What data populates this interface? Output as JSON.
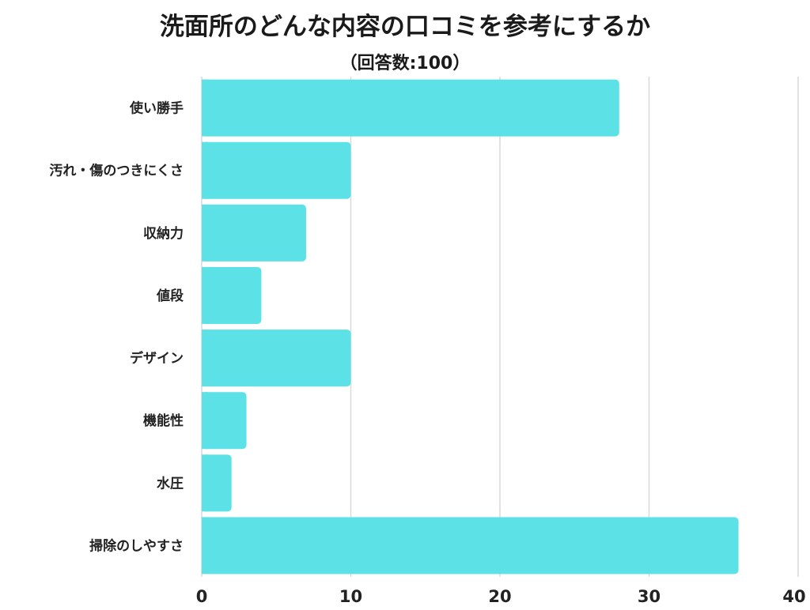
{
  "chart_data": {
    "type": "bar",
    "orientation": "horizontal",
    "title": "洗面所のどんな内容の口コミを参考にするか",
    "subtitle": "（回答数:100）",
    "categories": [
      "使い勝手",
      "汚れ・傷のつきにくさ",
      "収納力",
      "値段",
      "デザイン",
      "機能性",
      "水圧",
      "掃除のしやすさ"
    ],
    "values": [
      28,
      10,
      7,
      4,
      10,
      3,
      2,
      36
    ],
    "xlim": [
      0,
      40
    ],
    "xticks": [
      0,
      10,
      20,
      30,
      40
    ],
    "grid": true,
    "legend": "none",
    "bar_color": "#5ce1e6",
    "grid_color": "#d9d9d9"
  }
}
